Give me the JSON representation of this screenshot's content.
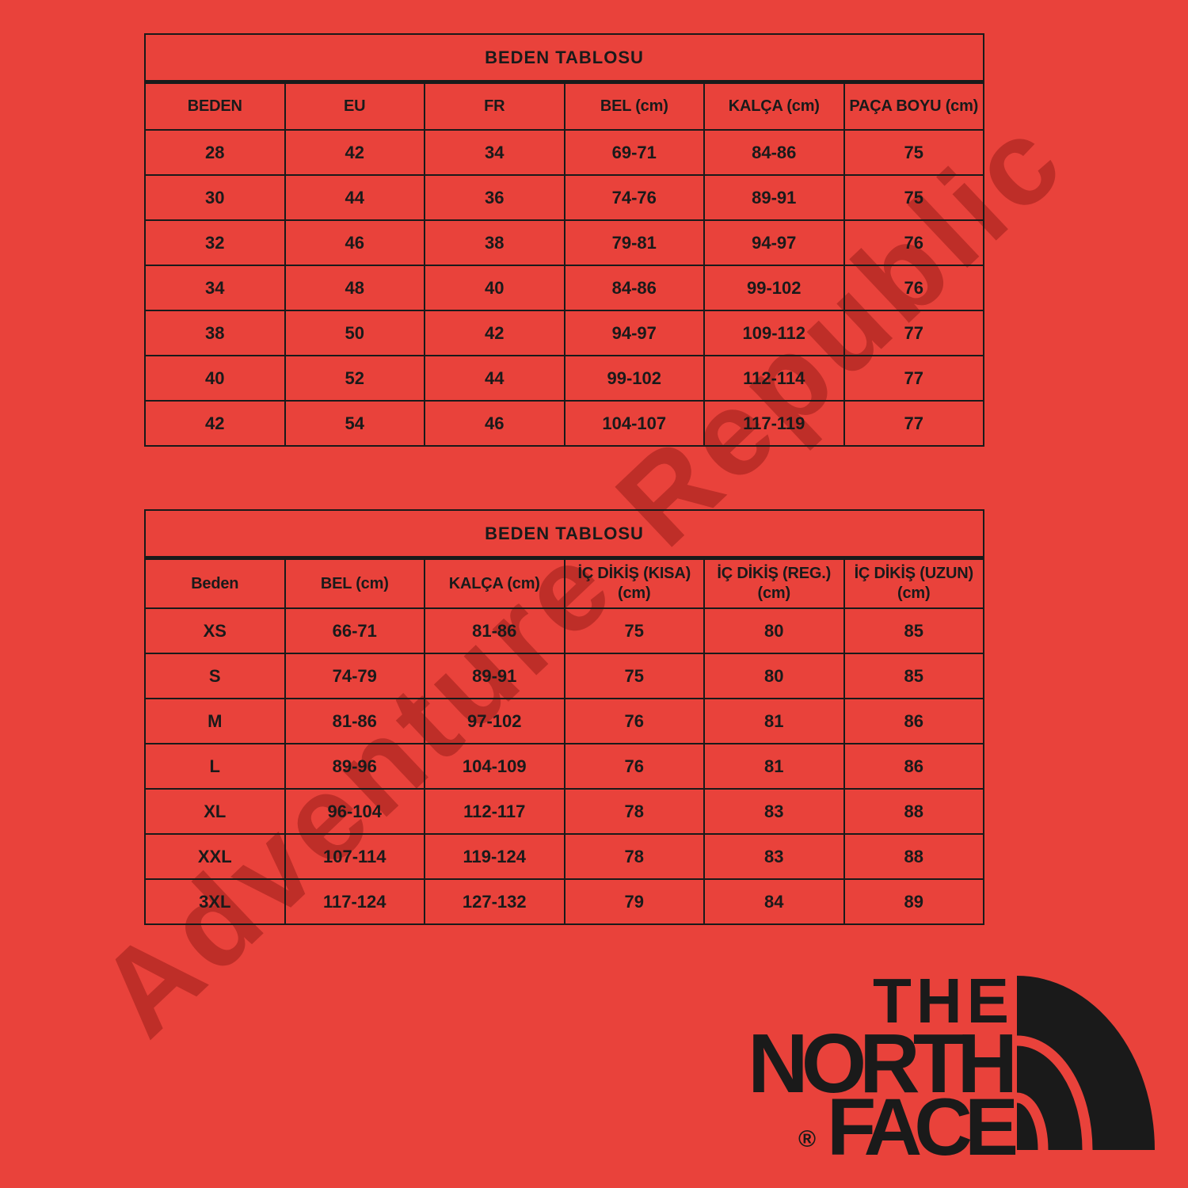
{
  "theme": {
    "background_red": "#e9423b",
    "ink_black": "#1a1a1a",
    "watermark_red": "rgba(138,22,18,0.45)"
  },
  "watermark": {
    "text": "Adventure Republic"
  },
  "tables": [
    {
      "title": "BEDEN TABLOSU",
      "columns": [
        "BEDEN",
        "EU",
        "FR",
        "BEL (cm)",
        "KALÇA (cm)",
        "PAÇA BOYU (cm)"
      ],
      "rows": [
        [
          "28",
          "42",
          "34",
          "69-71",
          "84-86",
          "75"
        ],
        [
          "30",
          "44",
          "36",
          "74-76",
          "89-91",
          "75"
        ],
        [
          "32",
          "46",
          "38",
          "79-81",
          "94-97",
          "76"
        ],
        [
          "34",
          "48",
          "40",
          "84-86",
          "99-102",
          "76"
        ],
        [
          "38",
          "50",
          "42",
          "94-97",
          "109-112",
          "77"
        ],
        [
          "40",
          "52",
          "44",
          "99-102",
          "112-114",
          "77"
        ],
        [
          "42",
          "54",
          "46",
          "104-107",
          "117-119",
          "77"
        ]
      ]
    },
    {
      "title": "BEDEN TABLOSU",
      "columns": [
        "Beden",
        "BEL (cm)",
        "KALÇA (cm)",
        "İÇ DİKİŞ (KISA)\n(cm)",
        "İÇ DİKİŞ (REG.)\n(cm)",
        "İÇ DİKİŞ (UZUN)\n(cm)"
      ],
      "rows": [
        [
          "XS",
          "66-71",
          "81-86",
          "75",
          "80",
          "85"
        ],
        [
          "S",
          "74-79",
          "89-91",
          "75",
          "80",
          "85"
        ],
        [
          "M",
          "81-86",
          "97-102",
          "76",
          "81",
          "86"
        ],
        [
          "L",
          "89-96",
          "104-109",
          "76",
          "81",
          "86"
        ],
        [
          "XL",
          "96-104",
          "112-117",
          "78",
          "83",
          "88"
        ],
        [
          "XXL",
          "107-114",
          "119-124",
          "78",
          "83",
          "88"
        ],
        [
          "3XL",
          "117-124",
          "127-132",
          "79",
          "84",
          "89"
        ]
      ]
    }
  ],
  "logo": {
    "line1": "THE",
    "line2": "NORTH",
    "line3": "FACE",
    "registered": "®"
  }
}
